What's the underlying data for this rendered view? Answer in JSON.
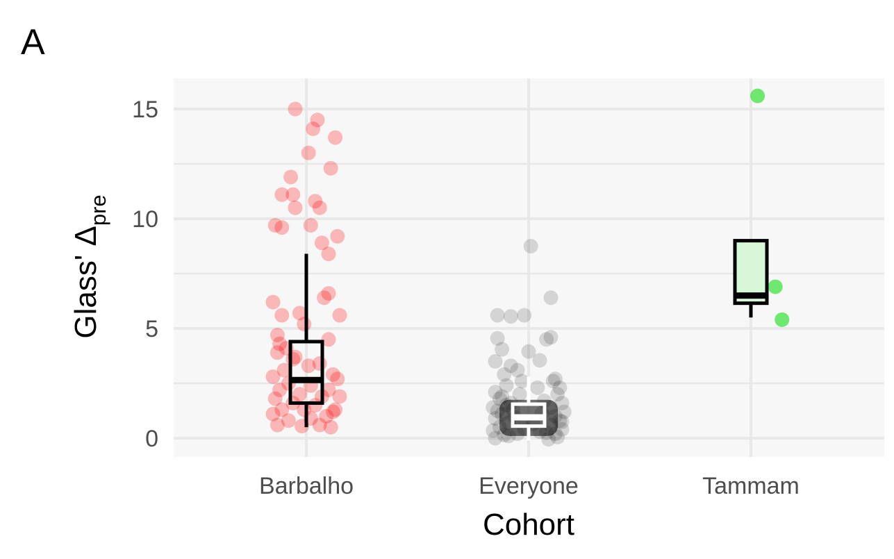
{
  "panel_label": "A",
  "chart_data": {
    "type": "box+jitter",
    "xlabel": "Cohort",
    "ylabel": "Glass' Δ",
    "ylabel_subscript": "pre",
    "categories": [
      "Barbalho",
      "Everyone",
      "Tammam"
    ],
    "ylim": [
      -0.8,
      16.4
    ],
    "y_ticks": [
      0,
      5,
      10,
      15
    ],
    "grid": true,
    "legend": "none",
    "colors": {
      "Barbalho": "#ff0000",
      "Everyone": "#000000",
      "Tammam": "#00dd00",
      "panel_bg": "#f7f7f7",
      "grid": "#e8e8e8"
    },
    "boxes": [
      {
        "name": "Barbalho",
        "whisker_low": 0.5,
        "q1": 1.6,
        "median": 2.65,
        "q3": 4.4,
        "whisker_high": 8.4,
        "box_fill": "none",
        "box_stroke": "#000000"
      },
      {
        "name": "Everyone",
        "whisker_low": -0.1,
        "q1": 0.55,
        "median": 0.95,
        "q3": 1.55,
        "whisker_high": 2.8,
        "box_fill": "none",
        "box_stroke": "#ffffff"
      },
      {
        "name": "Tammam",
        "whisker_low": 5.5,
        "q1": 6.15,
        "median": 6.5,
        "q3": 9.0,
        "whisker_high": 9.0,
        "box_fill": "#d8f7d8",
        "box_stroke": "#000000"
      }
    ],
    "series": [
      {
        "name": "Barbalho",
        "points": [
          [
            -0.05,
            15.0
          ],
          [
            0.05,
            14.5
          ],
          [
            0.03,
            14.1
          ],
          [
            0.13,
            13.7
          ],
          [
            0.01,
            13.0
          ],
          [
            0.11,
            12.3
          ],
          [
            -0.07,
            11.9
          ],
          [
            -0.11,
            11.1
          ],
          [
            -0.06,
            11.1
          ],
          [
            0.04,
            10.8
          ],
          [
            -0.05,
            10.5
          ],
          [
            0.06,
            10.5
          ],
          [
            -0.14,
            9.7
          ],
          [
            -0.11,
            9.6
          ],
          [
            0.02,
            9.7
          ],
          [
            0.14,
            9.2
          ],
          [
            0.07,
            8.9
          ],
          [
            0.1,
            8.4
          ],
          [
            0.1,
            6.6
          ],
          [
            0.08,
            6.4
          ],
          [
            -0.15,
            6.2
          ],
          [
            -0.03,
            5.7
          ],
          [
            -0.11,
            5.6
          ],
          [
            0.15,
            5.6
          ],
          [
            -0.01,
            5.2
          ],
          [
            -0.13,
            4.7
          ],
          [
            0.1,
            4.5
          ],
          [
            -0.12,
            4.3
          ],
          [
            -0.09,
            4.1
          ],
          [
            -0.13,
            3.9
          ],
          [
            -0.06,
            3.6
          ],
          [
            0.06,
            3.4
          ],
          [
            -0.1,
            3.1
          ],
          [
            0.12,
            2.9
          ],
          [
            -0.15,
            2.8
          ],
          [
            0.14,
            2.7
          ],
          [
            -0.08,
            2.5
          ],
          [
            0.02,
            2.4
          ],
          [
            -0.12,
            2.2
          ],
          [
            0.1,
            2.2
          ],
          [
            -0.03,
            2.0
          ],
          [
            0.07,
            1.9
          ],
          [
            -0.14,
            1.8
          ],
          [
            0.15,
            1.9
          ],
          [
            -0.06,
            1.6
          ],
          [
            0.04,
            1.5
          ],
          [
            -0.11,
            1.3
          ],
          [
            0.12,
            1.2
          ],
          [
            -0.15,
            1.1
          ],
          [
            0.09,
            1.0
          ],
          [
            -0.08,
            0.8
          ],
          [
            0.02,
            0.9
          ],
          [
            -0.13,
            0.6
          ],
          [
            -0.02,
            0.55
          ],
          [
            0.11,
            0.5
          ],
          [
            0.06,
            0.6
          ],
          [
            -0.05,
            3.7
          ],
          [
            0.01,
            3.3
          ],
          [
            -0.01,
            1.3
          ],
          [
            0.13,
            1.3
          ]
        ]
      },
      {
        "name": "Everyone",
        "points": [
          [
            0.01,
            8.75
          ],
          [
            0.1,
            6.4
          ],
          [
            -0.14,
            5.6
          ],
          [
            -0.08,
            5.55
          ],
          [
            -0.02,
            5.6
          ],
          [
            0.08,
            4.5
          ],
          [
            0.1,
            4.6
          ],
          [
            -0.14,
            4.55
          ],
          [
            -0.12,
            4.05
          ],
          [
            0.0,
            3.95
          ],
          [
            -0.15,
            3.5
          ],
          [
            0.05,
            3.55
          ],
          [
            -0.08,
            3.3
          ],
          [
            -0.05,
            3.1
          ],
          [
            -0.11,
            2.9
          ],
          [
            0.12,
            2.7
          ],
          [
            -0.03,
            2.6
          ],
          [
            0.14,
            2.3
          ],
          [
            -0.15,
            2.1
          ],
          [
            0.13,
            2.0
          ],
          [
            -0.13,
            1.8
          ],
          [
            0.15,
            1.6
          ],
          [
            -0.1,
            1.5
          ],
          [
            -0.16,
            1.4
          ],
          [
            0.16,
            1.2
          ],
          [
            -0.12,
            1.1
          ],
          [
            0.12,
            1.0
          ],
          [
            -0.15,
            0.9
          ],
          [
            0.14,
            0.8
          ],
          [
            -0.09,
            0.7
          ],
          [
            0.1,
            0.6
          ],
          [
            -0.13,
            0.5
          ],
          [
            0.15,
            0.4
          ],
          [
            -0.16,
            0.35
          ],
          [
            0.12,
            0.2
          ],
          [
            -0.11,
            0.15
          ],
          [
            -0.15,
            0.0
          ],
          [
            0.09,
            -0.05
          ],
          [
            -0.05,
            0.2
          ],
          [
            0.05,
            0.3
          ],
          [
            -0.07,
            1.3
          ],
          [
            0.07,
            1.7
          ],
          [
            -0.04,
            2.0
          ],
          [
            0.04,
            2.3
          ],
          [
            -0.09,
            0.1
          ],
          [
            0.13,
            0.05
          ],
          [
            -0.02,
            0.45
          ],
          [
            0.02,
            0.65
          ],
          [
            -0.12,
            1.9
          ],
          [
            0.1,
            1.4
          ],
          [
            -0.06,
            0.95
          ],
          [
            0.06,
            1.15
          ],
          [
            -0.14,
            1.25
          ],
          [
            0.15,
            0.75
          ],
          [
            -0.1,
            2.4
          ],
          [
            0.11,
            2.6
          ],
          [
            -0.08,
            1.6
          ],
          [
            0.08,
            0.25
          ]
        ]
      },
      {
        "name": "Tammam",
        "points": [
          [
            0.03,
            15.6
          ],
          [
            0.11,
            6.9
          ],
          [
            0.14,
            5.4
          ]
        ]
      }
    ]
  }
}
